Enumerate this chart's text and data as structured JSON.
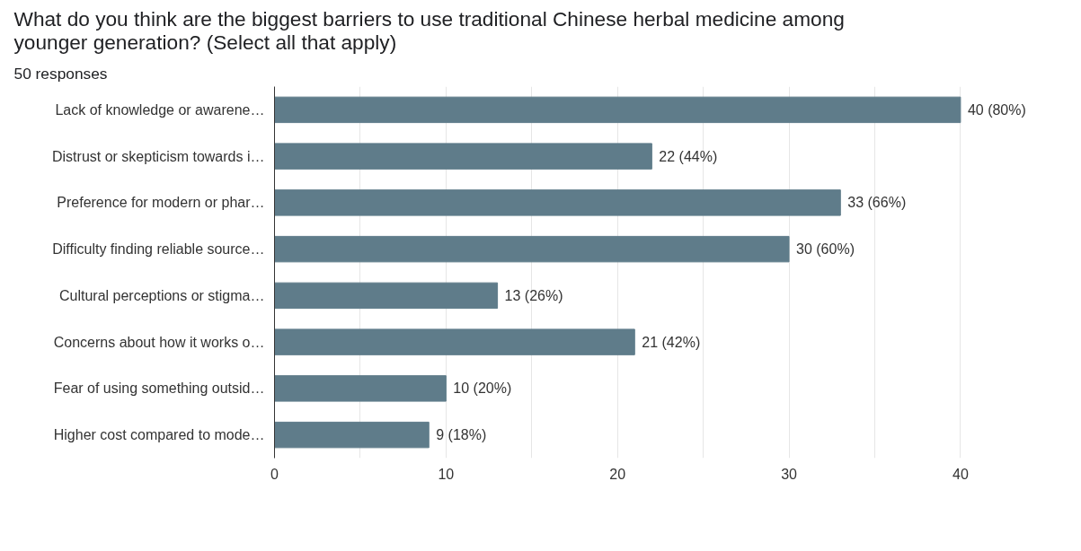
{
  "chart_data": {
    "type": "bar",
    "orientation": "horizontal",
    "title": "What do you think are the biggest barriers to use traditional Chinese herbal medicine among younger generation? (Select all that apply)",
    "subtitle": "50 responses",
    "categories": [
      "Lack of knowledge or awarene…",
      "Distrust or skepticism towards i…",
      "Preference for modern or phar…",
      "Difficulty finding reliable source…",
      "Cultural perceptions or stigma…",
      "Concerns about how it works o…",
      "Fear of using something outsid…",
      "Higher cost compared to mode…"
    ],
    "values": [
      40,
      22,
      33,
      30,
      13,
      21,
      10,
      9
    ],
    "value_labels": [
      "40 (80%)",
      "22 (44%)",
      "33 (66%)",
      "30 (60%)",
      "13 (26%)",
      "21 (42%)",
      "10 (20%)",
      "9 (18%)"
    ],
    "color": "#5f7c8a",
    "xlim": [
      0,
      40
    ],
    "xticks": [
      0,
      {
        "value": 5,
        "label": null
      },
      10,
      {
        "value": 15,
        "label": null
      },
      20,
      {
        "value": 25,
        "label": null
      },
      30,
      {
        "value": 35,
        "label": null
      },
      40
    ],
    "grid": "x"
  }
}
